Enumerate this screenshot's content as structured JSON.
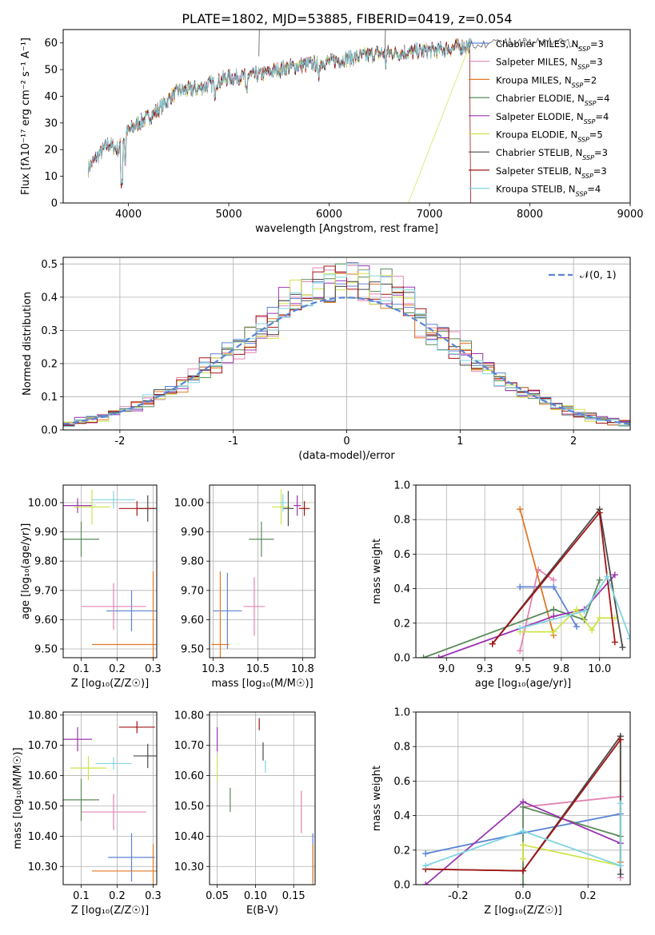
{
  "figure": {
    "title": "PLATE=1802, MJD=53885, FIBERID=0419, z=0.054"
  },
  "colors": {
    "Chabrier MILES": "#5b84d6",
    "Salpeter MILES": "#e384b4",
    "Kroupa MILES": "#e07826",
    "Chabrier ELODIE": "#5a8a5a",
    "Salpeter ELODIE": "#9b34b0",
    "Kroupa ELODIE": "#cfe34a",
    "Chabrier STELIB": "#4a4a4a",
    "Salpeter STELIB": "#a31414",
    "Kroupa STELIB": "#80d4e0"
  },
  "chart_data": [
    {
      "id": "spectrum",
      "type": "line",
      "title": "PLATE=1802, MJD=53885, FIBERID=0419, z=0.054",
      "xlabel": "wavelength [Angstrom, rest frame]",
      "ylabel": "Flux [fλ10⁻¹⁷ erg cm⁻² s⁻¹ A⁻¹]",
      "xlim": [
        3350,
        9000
      ],
      "ylim": [
        0,
        65
      ],
      "xticks": [
        4000,
        5000,
        6000,
        7000,
        8000,
        9000
      ],
      "yticks": [
        0,
        10,
        20,
        30,
        40,
        50,
        60
      ],
      "legend_position": "top-right",
      "continuum_wavelength": [
        3600,
        3700,
        3800,
        3900,
        4000,
        4100,
        4200,
        4300,
        4400,
        4500,
        4700,
        5000,
        5300,
        5600,
        6000,
        6500,
        7000,
        7400
      ],
      "continuum_flux": [
        13,
        18,
        22,
        20,
        27,
        30,
        32,
        35,
        39,
        42,
        43,
        47,
        48,
        51,
        53,
        56,
        57,
        59
      ],
      "series": [
        {
          "name": "Chabrier MILES",
          "nssp": "3"
        },
        {
          "name": "Salpeter MILES",
          "nssp": "3"
        },
        {
          "name": "Kroupa MILES",
          "nssp": "2"
        },
        {
          "name": "Chabrier ELODIE",
          "nssp": "4"
        },
        {
          "name": "Salpeter ELODIE",
          "nssp": "4"
        },
        {
          "name": "Kroupa ELODIE",
          "nssp": "5"
        },
        {
          "name": "Chabrier STELIB",
          "nssp": "3"
        },
        {
          "name": "Salpeter STELIB",
          "nssp": "3"
        },
        {
          "name": "Kroupa STELIB",
          "nssp": "4"
        }
      ]
    },
    {
      "id": "residuals",
      "type": "line",
      "xlabel": "(data-model)/error",
      "ylabel": "Normed distribution",
      "xlim": [
        -2.5,
        2.5
      ],
      "ylim": [
        0,
        0.52
      ],
      "xticks": [
        -2,
        -1,
        0,
        1,
        2
      ],
      "yticks": [
        0.0,
        0.1,
        0.2,
        0.3,
        0.4,
        0.5
      ],
      "legend": "𝒩(0, 1)",
      "legend_position": "top-right",
      "grid": true,
      "bin_width": 0.1
    },
    {
      "id": "age-vs-z",
      "type": "scatter",
      "xlabel": "Z [log₁₀(Z/Z☉)]",
      "ylabel": "age  [log₁₀(age/yr)]",
      "xlim": [
        0.05,
        0.31
      ],
      "ylim": [
        9.47,
        10.06
      ],
      "xticks": [
        0.1,
        0.2,
        0.3
      ],
      "yticks": [
        9.5,
        9.6,
        9.7,
        9.8,
        9.9,
        10.0
      ],
      "grid": true,
      "points": [
        {
          "series": "Chabrier MILES",
          "x": 0.24,
          "y": 9.63,
          "xerr": 0.07,
          "yerr": 0.07
        },
        {
          "series": "Salpeter MILES",
          "x": 0.19,
          "y": 9.645,
          "xerr": 0.09,
          "yerr": 0.08
        },
        {
          "series": "Kroupa MILES",
          "x": 0.3,
          "y": 9.515,
          "xerr": 0.17,
          "yerr": 0.25
        },
        {
          "series": "Chabrier ELODIE",
          "x": 0.1,
          "y": 9.875,
          "xerr": 0.05,
          "yerr": 0.06
        },
        {
          "series": "Salpeter ELODIE",
          "x": 0.09,
          "y": 9.99,
          "xerr": 0.04,
          "yerr": 0.025
        },
        {
          "series": "Kroupa ELODIE",
          "x": 0.13,
          "y": 9.985,
          "xerr": 0.05,
          "yerr": 0.06
        },
        {
          "series": "Chabrier STELIB",
          "x": 0.285,
          "y": 9.98,
          "xerr": 0.03,
          "yerr": 0.045
        },
        {
          "series": "Salpeter STELIB",
          "x": 0.255,
          "y": 9.98,
          "xerr": 0.05,
          "yerr": 0.025
        },
        {
          "series": "Kroupa STELIB",
          "x": 0.19,
          "y": 10.01,
          "xerr": 0.06,
          "yerr": 0.03
        }
      ]
    },
    {
      "id": "age-vs-mass",
      "type": "scatter",
      "xlabel": "mass [log₁₀(M/M☉)]",
      "ylabel": "",
      "xlim": [
        10.23,
        10.82
      ],
      "ylim": [
        9.47,
        10.06
      ],
      "xticks": [
        10.25,
        10.5,
        10.75
      ],
      "yticks": [
        9.5,
        9.6,
        9.7,
        9.8,
        9.9,
        10.0
      ],
      "grid": true,
      "points": [
        {
          "series": "Chabrier MILES",
          "x": 10.33,
          "y": 9.63,
          "xerr": 0.08,
          "yerr": 0.13
        },
        {
          "series": "Salpeter MILES",
          "x": 10.48,
          "y": 9.645,
          "xerr": 0.06,
          "yerr": 0.1
        },
        {
          "series": "Kroupa MILES",
          "x": 10.29,
          "y": 9.515,
          "xerr": 0.05,
          "yerr": 0.25
        },
        {
          "series": "Chabrier ELODIE",
          "x": 10.52,
          "y": 9.875,
          "xerr": 0.07,
          "yerr": 0.06
        },
        {
          "series": "Salpeter ELODIE",
          "x": 10.72,
          "y": 9.99,
          "xerr": 0.02,
          "yerr": 0.035
        },
        {
          "series": "Kroupa ELODIE",
          "x": 10.63,
          "y": 9.985,
          "xerr": 0.05,
          "yerr": 0.06
        },
        {
          "series": "Chabrier STELIB",
          "x": 10.67,
          "y": 9.98,
          "xerr": 0.03,
          "yerr": 0.06
        },
        {
          "series": "Salpeter STELIB",
          "x": 10.76,
          "y": 9.98,
          "xerr": 0.03,
          "yerr": 0.025
        },
        {
          "series": "Kroupa STELIB",
          "x": 10.64,
          "y": 10.0,
          "xerr": 0.02,
          "yerr": 0.03
        }
      ]
    },
    {
      "id": "weight-vs-age",
      "type": "line",
      "xlabel": "age  [log₁₀(age/yr)]",
      "ylabel": "mass weight",
      "xlim": [
        8.8,
        10.2
      ],
      "ylim": [
        0,
        1.0
      ],
      "xticks": [
        9.0,
        9.25,
        9.5,
        9.75,
        10.0
      ],
      "yticks": [
        0.0,
        0.2,
        0.4,
        0.6,
        0.8,
        1.0
      ],
      "grid": true,
      "series": [
        {
          "name": "Chabrier MILES",
          "x": [
            9.48,
            9.7,
            9.85
          ],
          "y": [
            0.41,
            0.41,
            0.18
          ]
        },
        {
          "name": "Salpeter MILES",
          "x": [
            9.48,
            9.6,
            9.7
          ],
          "y": [
            0.04,
            0.51,
            0.45
          ]
        },
        {
          "name": "Kroupa MILES",
          "x": [
            9.48,
            9.7
          ],
          "y": [
            0.86,
            0.13
          ]
        },
        {
          "name": "Chabrier ELODIE",
          "x": [
            8.85,
            9.7,
            9.9,
            10.0
          ],
          "y": [
            0.0,
            0.28,
            0.22,
            0.45
          ]
        },
        {
          "name": "Salpeter ELODIE",
          "x": [
            8.95,
            9.7,
            9.9,
            10.1
          ],
          "y": [
            0.0,
            0.24,
            0.28,
            0.48
          ]
        },
        {
          "name": "Kroupa ELODIE",
          "x": [
            9.48,
            9.7,
            9.85,
            9.95,
            10.0,
            10.1
          ],
          "y": [
            0.15,
            0.15,
            0.28,
            0.16,
            0.23,
            0.23
          ]
        },
        {
          "name": "Chabrier STELIB",
          "x": [
            9.3,
            10.0,
            10.15
          ],
          "y": [
            0.08,
            0.86,
            0.06
          ]
        },
        {
          "name": "Salpeter STELIB",
          "x": [
            9.3,
            10.0,
            10.1
          ],
          "y": [
            0.08,
            0.84,
            0.09
          ]
        },
        {
          "name": "Kroupa STELIB",
          "x": [
            9.48,
            9.9,
            10.05,
            10.2
          ],
          "y": [
            0.17,
            0.27,
            0.47,
            0.11
          ]
        }
      ]
    },
    {
      "id": "mass-vs-z",
      "type": "scatter",
      "xlabel": "Z [log₁₀(Z/Z☉)]",
      "ylabel": "mass [log₁₀(M/M☉)]",
      "xlim": [
        0.05,
        0.31
      ],
      "ylim": [
        10.24,
        10.81
      ],
      "xticks": [
        0.1,
        0.2,
        0.3
      ],
      "yticks": [
        10.3,
        10.4,
        10.5,
        10.6,
        10.7,
        10.8
      ],
      "grid": true,
      "points": [
        {
          "series": "Chabrier MILES",
          "x": 0.24,
          "y": 10.33,
          "xerr": 0.065,
          "yerr": 0.08
        },
        {
          "series": "Salpeter MILES",
          "x": 0.19,
          "y": 10.48,
          "xerr": 0.09,
          "yerr": 0.06
        },
        {
          "series": "Kroupa MILES",
          "x": 0.3,
          "y": 10.285,
          "xerr": 0.17,
          "yerr": 0.09
        },
        {
          "series": "Chabrier ELODIE",
          "x": 0.1,
          "y": 10.52,
          "xerr": 0.05,
          "yerr": 0.07
        },
        {
          "series": "Salpeter ELODIE",
          "x": 0.09,
          "y": 10.72,
          "xerr": 0.04,
          "yerr": 0.04
        },
        {
          "series": "Kroupa ELODIE",
          "x": 0.12,
          "y": 10.625,
          "xerr": 0.05,
          "yerr": 0.04
        },
        {
          "series": "Chabrier STELIB",
          "x": 0.285,
          "y": 10.665,
          "xerr": 0.04,
          "yerr": 0.04
        },
        {
          "series": "Salpeter STELIB",
          "x": 0.255,
          "y": 10.76,
          "xerr": 0.05,
          "yerr": 0.02
        },
        {
          "series": "Kroupa STELIB",
          "x": 0.19,
          "y": 10.64,
          "xerr": 0.05,
          "yerr": 0.02
        }
      ]
    },
    {
      "id": "mass-vs-ebv",
      "type": "scatter",
      "xlabel": "E(B-V)",
      "ylabel": "",
      "xlim": [
        0.04,
        0.178
      ],
      "ylim": [
        10.24,
        10.81
      ],
      "xticks": [
        0.05,
        0.1,
        0.15
      ],
      "yticks": [
        10.3,
        10.4,
        10.5,
        10.6,
        10.7,
        10.8
      ],
      "grid": true,
      "points": [
        {
          "series": "Chabrier MILES",
          "x": 0.175,
          "y": 10.33,
          "xerr": 0,
          "yerr": 0.08
        },
        {
          "series": "Salpeter MILES",
          "x": 0.16,
          "y": 10.48,
          "xerr": 0,
          "yerr": 0.07
        },
        {
          "series": "Kroupa MILES",
          "x": 0.175,
          "y": 10.285,
          "xerr": 0,
          "yerr": 0.09
        },
        {
          "series": "Chabrier ELODIE",
          "x": 0.067,
          "y": 10.52,
          "xerr": 0,
          "yerr": 0.04
        },
        {
          "series": "Salpeter ELODIE",
          "x": 0.05,
          "y": 10.72,
          "xerr": 0,
          "yerr": 0.04
        },
        {
          "series": "Kroupa ELODIE",
          "x": 0.05,
          "y": 10.625,
          "xerr": 0,
          "yerr": 0.04
        },
        {
          "series": "Chabrier STELIB",
          "x": 0.11,
          "y": 10.68,
          "xerr": 0,
          "yerr": 0.03
        },
        {
          "series": "Salpeter STELIB",
          "x": 0.105,
          "y": 10.77,
          "xerr": 0,
          "yerr": 0.02
        },
        {
          "series": "Kroupa STELIB",
          "x": 0.113,
          "y": 10.63,
          "xerr": 0,
          "yerr": 0.02
        }
      ]
    },
    {
      "id": "weight-vs-z",
      "type": "line",
      "xlabel": "Z [log₁₀(Z/Z☉)]",
      "ylabel": "mass weight",
      "xlim": [
        -0.33,
        0.33
      ],
      "ylim": [
        0,
        1.0
      ],
      "xticks": [
        -0.2,
        0.0,
        0.2
      ],
      "yticks": [
        0.0,
        0.2,
        0.4,
        0.6,
        0.8,
        1.0
      ],
      "grid": true,
      "series": [
        {
          "name": "Chabrier MILES",
          "x": [
            -0.3,
            0.0,
            0.3
          ],
          "y": [
            0.18,
            0.3,
            0.41
          ]
        },
        {
          "name": "Salpeter MILES",
          "x": [
            0.0,
            0.3,
            0.3
          ],
          "y": [
            0.45,
            0.51,
            0.04
          ]
        },
        {
          "name": "Kroupa MILES",
          "x": [
            0.3,
            0.3
          ],
          "y": [
            0.86,
            0.13
          ]
        },
        {
          "name": "Chabrier ELODIE",
          "x": [
            0.0,
            0.0,
            0.3
          ],
          "y": [
            0.0,
            0.45,
            0.28
          ]
        },
        {
          "name": "Salpeter ELODIE",
          "x": [
            -0.3,
            0.0,
            0.3
          ],
          "y": [
            0.0,
            0.48,
            0.24
          ]
        },
        {
          "name": "Kroupa ELODIE",
          "x": [
            0.0,
            0.0,
            0.3
          ],
          "y": [
            0.15,
            0.23,
            0.11
          ]
        },
        {
          "name": "Chabrier STELIB",
          "x": [
            -0.3,
            0.0,
            0.3,
            0.3
          ],
          "y": [
            0.09,
            0.08,
            0.86,
            0.06
          ]
        },
        {
          "name": "Salpeter STELIB",
          "x": [
            -0.3,
            0.0,
            0.3
          ],
          "y": [
            0.09,
            0.08,
            0.84
          ]
        },
        {
          "name": "Kroupa STELIB",
          "x": [
            -0.3,
            0.0,
            0.3,
            0.3
          ],
          "y": [
            0.11,
            0.31,
            0.11,
            0.47
          ]
        }
      ]
    }
  ]
}
